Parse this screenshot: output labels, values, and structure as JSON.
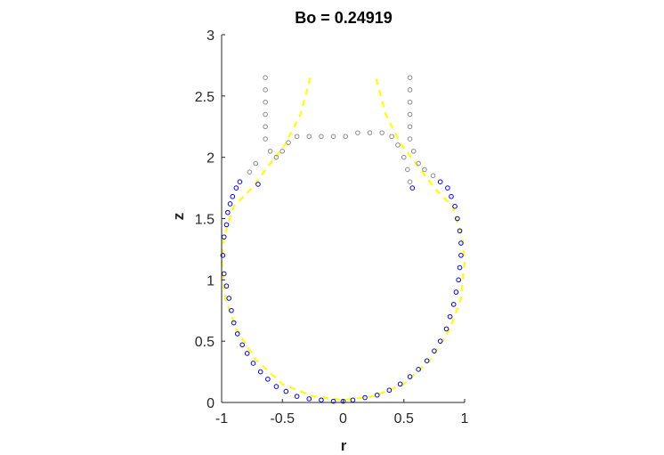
{
  "chart_data": {
    "type": "scatter",
    "title": "Bo = 0.24919",
    "xlabel": "r",
    "ylabel": "z",
    "xlim": [
      -1,
      1
    ],
    "ylim": [
      0,
      3
    ],
    "xticks": [
      "-1",
      "-0.5",
      "0",
      "0.5",
      "1"
    ],
    "yticks": [
      "0",
      "0.5",
      "1",
      "1.5",
      "2",
      "2.5",
      "3"
    ],
    "grid": false,
    "legend": "none",
    "colors": {
      "drop": "#0000ff",
      "air": "#8c8c8c",
      "fit": "#ffff00",
      "axis": "#262626"
    },
    "series": [
      {
        "marker": "circle-open",
        "color": "#0000ff",
        "points": [
          [
            -0.99,
            1.2
          ],
          [
            -0.98,
            1.35
          ],
          [
            -0.98,
            1.05
          ],
          [
            -0.96,
            1.45
          ],
          [
            -0.96,
            0.95
          ],
          [
            -0.95,
            1.55
          ],
          [
            -0.94,
            0.85
          ],
          [
            -0.93,
            1.62
          ],
          [
            -0.92,
            0.75
          ],
          [
            -0.91,
            1.68
          ],
          [
            -0.9,
            0.65
          ],
          [
            -0.88,
            1.75
          ],
          [
            -0.87,
            0.56
          ],
          [
            -0.85,
            1.8
          ],
          [
            -0.83,
            0.47
          ],
          [
            -0.79,
            0.4
          ],
          [
            -0.74,
            0.32
          ],
          [
            -0.68,
            0.25
          ],
          [
            -0.62,
            0.19
          ],
          [
            -0.55,
            0.13
          ],
          [
            -0.47,
            0.09
          ],
          [
            -0.38,
            0.05
          ],
          [
            -0.28,
            0.03
          ],
          [
            -0.18,
            0.02
          ],
          [
            -0.08,
            0.01
          ],
          [
            0.0,
            0.01
          ],
          [
            0.08,
            0.02
          ],
          [
            0.18,
            0.04
          ],
          [
            0.28,
            0.06
          ],
          [
            0.38,
            0.1
          ],
          [
            0.47,
            0.15
          ],
          [
            0.55,
            0.21
          ],
          [
            0.62,
            0.27
          ],
          [
            0.69,
            0.34
          ],
          [
            0.75,
            0.42
          ],
          [
            0.8,
            0.5
          ],
          [
            0.85,
            0.6
          ],
          [
            0.88,
            0.7
          ],
          [
            0.91,
            0.8
          ],
          [
            0.93,
            0.9
          ],
          [
            0.95,
            1.0
          ],
          [
            0.96,
            1.1
          ],
          [
            0.97,
            1.2
          ],
          [
            0.97,
            1.3
          ],
          [
            0.96,
            1.4
          ],
          [
            0.94,
            1.5
          ],
          [
            0.92,
            1.6
          ],
          [
            0.89,
            1.68
          ],
          [
            0.86,
            1.75
          ],
          [
            0.8,
            1.8
          ],
          [
            0.57,
            1.75
          ],
          [
            -0.7,
            1.78
          ]
        ]
      },
      {
        "marker": "circle-open",
        "color": "#8c8c8c",
        "points": [
          [
            -0.64,
            2.65
          ],
          [
            -0.64,
            2.55
          ],
          [
            -0.64,
            2.45
          ],
          [
            -0.64,
            2.35
          ],
          [
            -0.64,
            2.25
          ],
          [
            -0.64,
            2.15
          ],
          [
            -0.6,
            2.05
          ],
          [
            -0.55,
            2.0
          ],
          [
            -0.5,
            2.05
          ],
          [
            -0.45,
            2.12
          ],
          [
            -0.38,
            2.17
          ],
          [
            -0.28,
            2.17
          ],
          [
            -0.18,
            2.17
          ],
          [
            -0.08,
            2.17
          ],
          [
            0.02,
            2.17
          ],
          [
            0.12,
            2.2
          ],
          [
            0.22,
            2.2
          ],
          [
            0.32,
            2.2
          ],
          [
            0.4,
            2.17
          ],
          [
            0.45,
            2.1
          ],
          [
            0.5,
            2.0
          ],
          [
            0.53,
            1.9
          ],
          [
            0.55,
            1.8
          ],
          [
            0.55,
            2.15
          ],
          [
            0.55,
            2.25
          ],
          [
            0.55,
            2.35
          ],
          [
            0.55,
            2.45
          ],
          [
            0.55,
            2.55
          ],
          [
            0.55,
            2.65
          ],
          [
            0.58,
            2.05
          ],
          [
            0.62,
            1.95
          ],
          [
            0.67,
            1.9
          ],
          [
            0.74,
            1.85
          ],
          [
            -0.72,
            1.95
          ],
          [
            -0.77,
            1.88
          ]
        ]
      }
    ],
    "fit_line": [
      [
        -0.27,
        2.65
      ],
      [
        -0.35,
        2.35
      ],
      [
        -0.48,
        2.1
      ],
      [
        -0.6,
        1.95
      ],
      [
        -0.75,
        1.75
      ],
      [
        -0.9,
        1.6
      ],
      [
        -0.98,
        1.35
      ],
      [
        -1.0,
        1.15
      ],
      [
        -0.97,
        0.85
      ],
      [
        -0.88,
        0.6
      ],
      [
        -0.72,
        0.35
      ],
      [
        -0.5,
        0.15
      ],
      [
        -0.25,
        0.05
      ],
      [
        0.0,
        0.02
      ],
      [
        0.25,
        0.05
      ],
      [
        0.5,
        0.15
      ],
      [
        0.72,
        0.35
      ],
      [
        0.88,
        0.6
      ],
      [
        0.97,
        0.85
      ],
      [
        1.0,
        1.15
      ],
      [
        0.98,
        1.35
      ],
      [
        0.9,
        1.6
      ],
      [
        0.75,
        1.75
      ],
      [
        0.6,
        1.95
      ],
      [
        0.48,
        2.1
      ],
      [
        0.35,
        2.35
      ],
      [
        0.27,
        2.65
      ]
    ]
  }
}
